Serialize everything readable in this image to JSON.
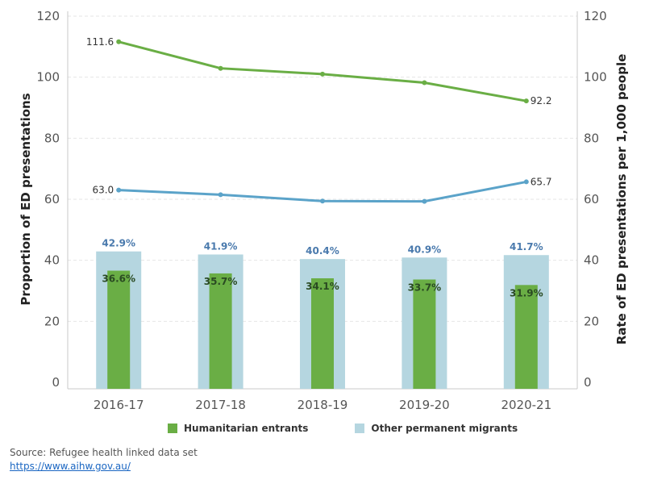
{
  "chart_data": {
    "type": "bar+line",
    "categories": [
      "2016-17",
      "2017-18",
      "2018-19",
      "2019-20",
      "2020-21"
    ],
    "left_axis": {
      "label": "Proportion of ED presentations",
      "ylim": [
        0,
        120
      ],
      "ticks": [
        0,
        20,
        40,
        60,
        80,
        100,
        120
      ]
    },
    "right_axis": {
      "label": "Rate of ED presentations per 1,000 people",
      "ylim": [
        0,
        120
      ],
      "ticks": [
        0,
        20,
        40,
        60,
        80,
        100,
        120
      ]
    },
    "bar_series": [
      {
        "name": "Other permanent migrants",
        "color": "#b5d6e0",
        "values": [
          42.9,
          41.9,
          40.4,
          40.9,
          41.7
        ],
        "labels": [
          "42.9%",
          "41.9%",
          "40.4%",
          "40.9%",
          "41.7%"
        ]
      },
      {
        "name": "Humanitarian entrants",
        "color": "#6aae45",
        "values": [
          36.6,
          35.7,
          34.1,
          33.7,
          31.9
        ],
        "labels": [
          "36.6%",
          "35.7%",
          "34.1%",
          "33.7%",
          "31.9%"
        ]
      }
    ],
    "line_series": [
      {
        "color": "#6aae45",
        "values": [
          111.6,
          102.9,
          101.0,
          98.2,
          92.2
        ],
        "end_labels": [
          "111.6",
          "92.2"
        ]
      },
      {
        "color": "#5ba3c9",
        "values": [
          63.0,
          61.5,
          59.4,
          59.3,
          65.7
        ],
        "end_labels": [
          "63.0",
          "65.7"
        ]
      }
    ],
    "legend": [
      "Humanitarian entrants",
      "Other permanent migrants"
    ],
    "grid": true
  },
  "source": {
    "text": "Source: Refugee health linked data set",
    "link": "https://www.aihw.gov.au/"
  }
}
